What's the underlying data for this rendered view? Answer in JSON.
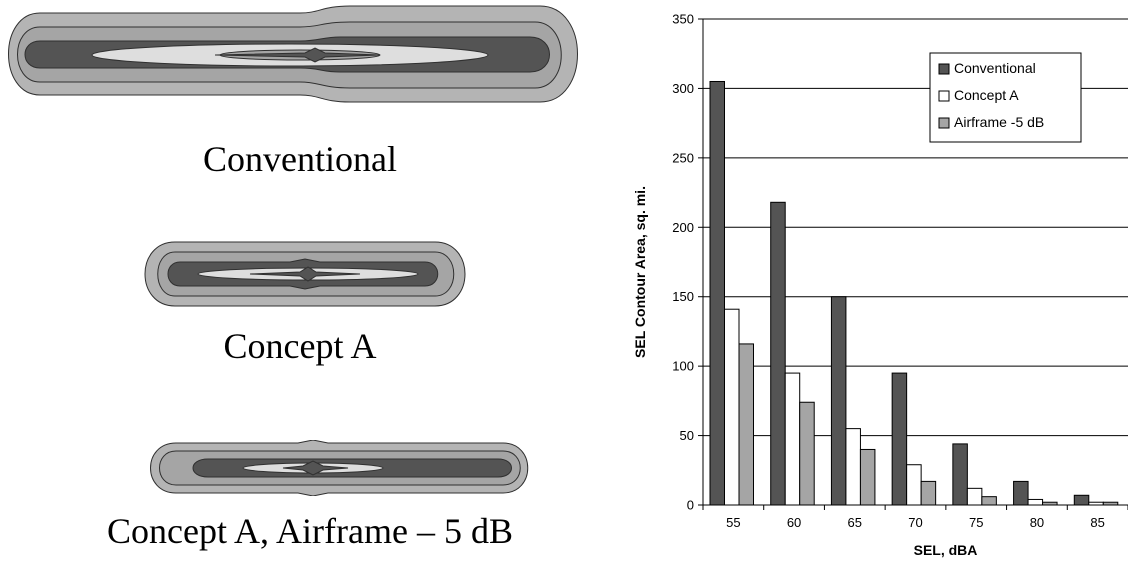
{
  "contour_panels": [
    {
      "caption": "Conventional"
    },
    {
      "caption": "Concept A"
    },
    {
      "caption": "Concept A, Airframe – 5 dB"
    }
  ],
  "colors": {
    "band_outer": "#b4b4b4",
    "band_dark": "#545454",
    "band_mid": "#a5a5a5",
    "band_light": "#dedede",
    "outline": "#303030"
  },
  "chart_data": {
    "type": "bar",
    "xlabel": "SEL, dBA",
    "ylabel": "SEL Contour Area, sq. mi.",
    "ylim": [
      0,
      350
    ],
    "yticks": [
      0,
      50,
      100,
      150,
      200,
      250,
      300,
      350
    ],
    "categories": [
      "55",
      "60",
      "65",
      "70",
      "75",
      "80",
      "85"
    ],
    "grid": true,
    "legend_position": "top-right",
    "series": [
      {
        "name": "Conventional",
        "color": "#545454",
        "values": [
          305,
          218,
          150,
          95,
          44,
          17,
          7
        ]
      },
      {
        "name": "Concept A",
        "color": "#ffffff",
        "values": [
          141,
          95,
          55,
          29,
          12,
          4,
          2
        ]
      },
      {
        "name": "Airframe -5 dB",
        "color": "#a5a5a5",
        "values": [
          116,
          74,
          40,
          17,
          6,
          2,
          2
        ]
      }
    ]
  }
}
